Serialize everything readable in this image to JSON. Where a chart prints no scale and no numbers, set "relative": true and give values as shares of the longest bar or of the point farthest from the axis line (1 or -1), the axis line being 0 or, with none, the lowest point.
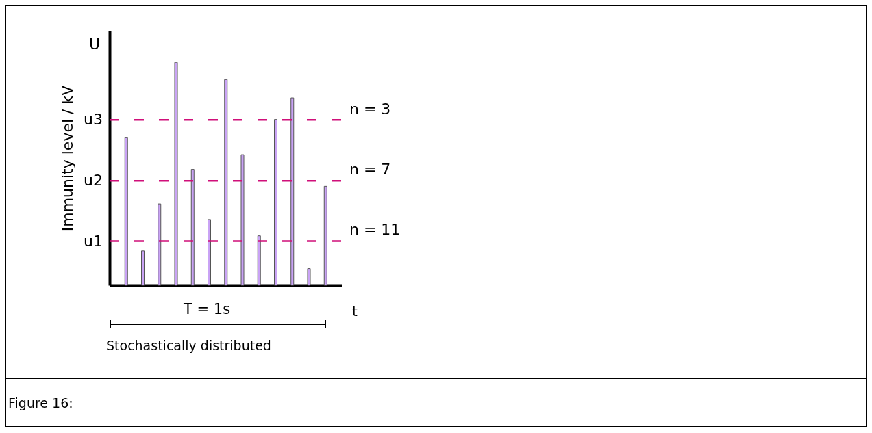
{
  "chart_data": {
    "type": "bar",
    "relative": true,
    "ylabel": "Immunity level / kV",
    "xlabel": "t",
    "color": "#c9a3f5",
    "categories": [
      null,
      null,
      null,
      null,
      null,
      null,
      null,
      null,
      null,
      null,
      null,
      null,
      null
    ],
    "values": [
      0.662,
      0.154,
      0.365,
      1,
      0.52,
      0.295,
      0.923,
      0.586,
      0.222,
      0.744,
      0.841,
      0.075,
      0.444
    ],
    "ref_lines": [
      {
        "axis": "y",
        "value": 0.742,
        "label": "u3",
        "color": "#d0107a",
        "line_style": "dashed"
      },
      {
        "axis": "y",
        "value": 0.469,
        "label": "u2",
        "color": "#d0107a",
        "line_style": "dashed"
      },
      {
        "axis": "y",
        "value": 0.198,
        "label": "u1",
        "color": "#d0107a",
        "line_style": "dashed"
      }
    ],
    "annotations": [
      "n = 3",
      "n = 7",
      "n = 11",
      "U",
      "T = 1s",
      "Stochastically distributed",
      "Figure 16:"
    ],
    "grid": false
  }
}
